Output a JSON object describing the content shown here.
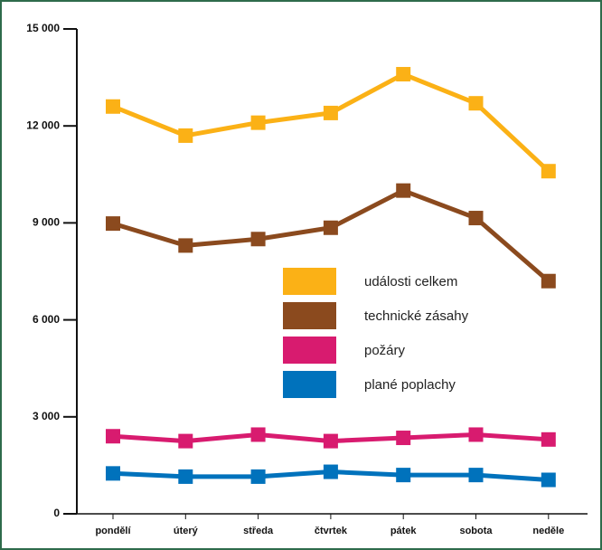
{
  "chart_data": {
    "type": "line",
    "categories": [
      "pondělí",
      "úterý",
      "středa",
      "čtvrtek",
      "pátek",
      "sobota",
      "neděle"
    ],
    "series": [
      {
        "name": "události celkem",
        "color": "#fbb116",
        "values": [
          12600,
          11700,
          12100,
          12400,
          13600,
          12700,
          10600
        ]
      },
      {
        "name": "technické zásahy",
        "color": "#8b4a1e",
        "values": [
          8980,
          8300,
          8500,
          8850,
          10000,
          9150,
          7200
        ]
      },
      {
        "name": "požáry",
        "color": "#d81b6f",
        "values": [
          2400,
          2250,
          2450,
          2250,
          2350,
          2450,
          2300
        ]
      },
      {
        "name": "plané poplachy",
        "color": "#0072bc",
        "values": [
          1250,
          1150,
          1150,
          1300,
          1200,
          1200,
          1050
        ]
      }
    ],
    "ylim": [
      0,
      15000
    ],
    "yticks": [
      0,
      {
        "value": 3000,
        "label": "3 000"
      },
      {
        "value": 6000,
        "label": "6 000"
      },
      {
        "value": 9000,
        "label": "9 000"
      },
      {
        "value": 12000,
        "label": "12 000"
      },
      {
        "value": 15000,
        "label": "15 000"
      }
    ]
  }
}
